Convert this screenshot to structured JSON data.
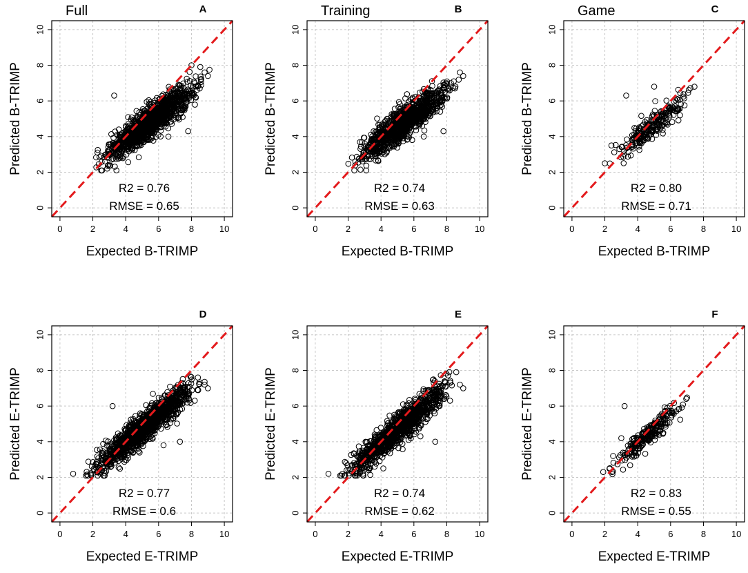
{
  "chart_data": [
    {
      "id": "A",
      "type": "scatter",
      "panel_letter": "A",
      "title": "Full",
      "xlabel": "Expected B-TRIMP",
      "ylabel": "Predicted B-TRIMP",
      "xlim": [
        -0.5,
        10.5
      ],
      "ylim": [
        -0.5,
        10.5
      ],
      "xticks": [
        0,
        2,
        4,
        6,
        8,
        10
      ],
      "yticks": [
        0,
        2,
        4,
        6,
        8,
        10
      ],
      "grid": true,
      "reference_line": "y = x",
      "r2_text": "R2 =  0.76",
      "rmse_text": "RMSE = 0.65",
      "cloud": {
        "n": 1300,
        "x_range": [
          1.8,
          9.2
        ],
        "slope": 0.7,
        "intercept": 1.0,
        "spread": 0.45
      },
      "outliers": [
        [
          3.3,
          6.3
        ],
        [
          6.6,
          4.0
        ],
        [
          7.8,
          4.3
        ],
        [
          8.5,
          6.7
        ],
        [
          8.0,
          8.0
        ],
        [
          8.8,
          7.6
        ],
        [
          9.0,
          7.4
        ],
        [
          8.2,
          7.0
        ]
      ]
    },
    {
      "id": "B",
      "type": "scatter",
      "panel_letter": "B",
      "title": "Training",
      "xlabel": "Expected B-TRIMP",
      "ylabel": "Predicted B-TRIMP",
      "xlim": [
        -0.5,
        10.5
      ],
      "ylim": [
        -0.5,
        10.5
      ],
      "xticks": [
        0,
        2,
        4,
        6,
        8,
        10
      ],
      "yticks": [
        0,
        2,
        4,
        6,
        8,
        10
      ],
      "grid": true,
      "reference_line": "y = x",
      "r2_text": "R2 =  0.74",
      "rmse_text": "RMSE = 0.63",
      "cloud": {
        "n": 1100,
        "x_range": [
          1.8,
          9.0
        ],
        "slope": 0.7,
        "intercept": 1.0,
        "spread": 0.45
      },
      "outliers": [
        [
          6.6,
          4.0
        ],
        [
          7.8,
          4.3
        ],
        [
          7.6,
          5.4
        ],
        [
          8.5,
          6.7
        ],
        [
          8.8,
          7.6
        ],
        [
          9.0,
          7.4
        ]
      ]
    },
    {
      "id": "C",
      "type": "scatter",
      "panel_letter": "C",
      "title": "Game",
      "xlabel": "Expected B-TRIMP",
      "ylabel": "Predicted B-TRIMP",
      "xlim": [
        -0.5,
        10.5
      ],
      "ylim": [
        -0.5,
        10.5
      ],
      "xticks": [
        0,
        2,
        4,
        6,
        8,
        10
      ],
      "yticks": [
        0,
        2,
        4,
        6,
        8,
        10
      ],
      "grid": true,
      "reference_line": "y = x",
      "r2_text": "R2 =  0.80",
      "rmse_text": "RMSE = 0.71",
      "cloud": {
        "n": 240,
        "x_range": [
          2.0,
          7.8
        ],
        "slope": 0.78,
        "intercept": 0.8,
        "spread": 0.35
      },
      "outliers": [
        [
          3.3,
          6.3
        ],
        [
          2.4,
          3.5
        ],
        [
          2.0,
          2.5
        ],
        [
          5.0,
          6.8
        ]
      ]
    },
    {
      "id": "D",
      "type": "scatter",
      "panel_letter": "D",
      "title": "",
      "xlabel": "Expected E-TRIMP",
      "ylabel": "Predicted E-TRIMP",
      "xlim": [
        -0.5,
        10.5
      ],
      "ylim": [
        -0.5,
        10.5
      ],
      "xticks": [
        0,
        2,
        4,
        6,
        8,
        10
      ],
      "yticks": [
        0,
        2,
        4,
        6,
        8,
        10
      ],
      "grid": true,
      "reference_line": "y = x",
      "r2_text": "R2 =  0.77",
      "rmse_text": "RMSE = 0.6",
      "cloud": {
        "n": 1300,
        "x_range": [
          1.0,
          9.0
        ],
        "slope": 0.78,
        "intercept": 0.8,
        "spread": 0.42
      },
      "outliers": [
        [
          0.8,
          2.2
        ],
        [
          3.2,
          6.0
        ],
        [
          6.9,
          5.3
        ],
        [
          7.3,
          4.0
        ],
        [
          6.3,
          3.8
        ],
        [
          8.2,
          6.3
        ],
        [
          8.8,
          7.2
        ],
        [
          9.0,
          7.0
        ]
      ]
    },
    {
      "id": "E",
      "type": "scatter",
      "panel_letter": "E",
      "title": "",
      "xlabel": "Expected E-TRIMP",
      "ylabel": "Predicted E-TRIMP",
      "xlim": [
        -0.5,
        10.5
      ],
      "ylim": [
        -0.5,
        10.5
      ],
      "xticks": [
        0,
        2,
        4,
        6,
        8,
        10
      ],
      "yticks": [
        0,
        2,
        4,
        6,
        8,
        10
      ],
      "grid": true,
      "reference_line": "y = x",
      "r2_text": "R2 =  0.74",
      "rmse_text": "RMSE = 0.62",
      "cloud": {
        "n": 1100,
        "x_range": [
          1.0,
          9.0
        ],
        "slope": 0.78,
        "intercept": 0.8,
        "spread": 0.42
      },
      "outliers": [
        [
          0.8,
          2.2
        ],
        [
          7.3,
          4.0
        ],
        [
          6.4,
          4.3
        ],
        [
          8.2,
          6.3
        ],
        [
          8.8,
          7.2
        ],
        [
          9.0,
          7.0
        ]
      ]
    },
    {
      "id": "F",
      "type": "scatter",
      "panel_letter": "F",
      "title": "",
      "xlabel": "Expected E-TRIMP",
      "ylabel": "Predicted E-TRIMP",
      "xlim": [
        -0.5,
        10.5
      ],
      "ylim": [
        -0.5,
        10.5
      ],
      "xticks": [
        0,
        2,
        4,
        6,
        8,
        10
      ],
      "yticks": [
        0,
        2,
        4,
        6,
        8,
        10
      ],
      "grid": true,
      "reference_line": "y = x",
      "r2_text": "R2 =  0.83",
      "rmse_text": "RMSE = 0.55",
      "cloud": {
        "n": 240,
        "x_range": [
          1.8,
          7.5
        ],
        "slope": 0.82,
        "intercept": 0.6,
        "spread": 0.32
      },
      "outliers": [
        [
          3.2,
          6.0
        ],
        [
          2.5,
          3.2
        ],
        [
          1.9,
          2.3
        ],
        [
          3.0,
          4.2
        ]
      ]
    }
  ],
  "colors": {
    "reference_line": "#e31a1c",
    "points": "#000000",
    "grid": "#c8c8c8"
  }
}
